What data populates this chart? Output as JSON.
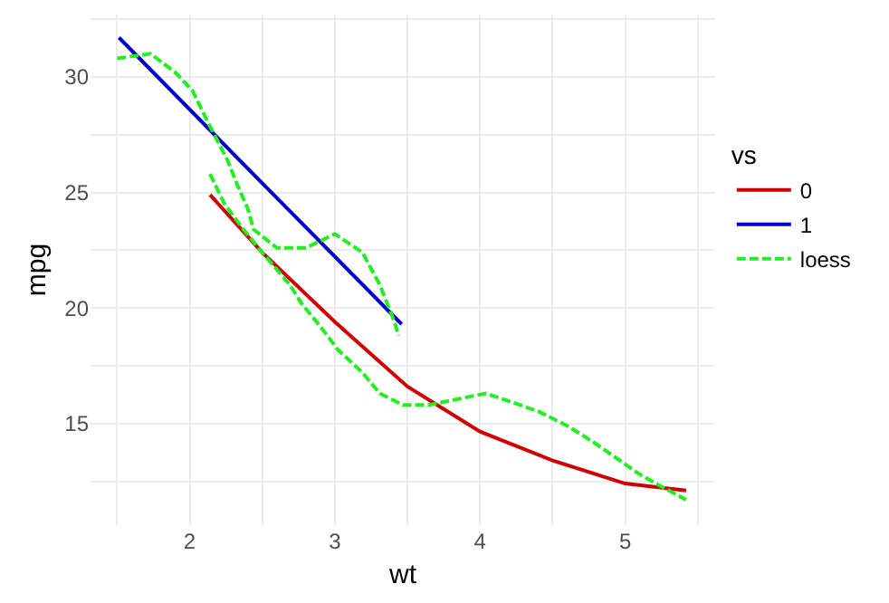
{
  "chart_data": {
    "type": "line",
    "xlabel": "wt",
    "ylabel": "mpg",
    "legend_title": "vs",
    "legend": "right",
    "grid": true,
    "marker": "none",
    "xlim": [
      1.317,
      5.62
    ],
    "ylim": [
      10.6,
      32.7
    ],
    "xticks": [
      {
        "value": 1.5,
        "label": null
      },
      2,
      {
        "value": 2.5,
        "label": null
      },
      3,
      {
        "value": 3.5,
        "label": null
      },
      4,
      {
        "value": 4.5,
        "label": null
      },
      5,
      {
        "value": 5.5,
        "label": null
      }
    ],
    "yticks": [
      {
        "value": 12.5,
        "label": null
      },
      15,
      {
        "value": 17.5,
        "label": null
      },
      20,
      {
        "value": 22.5,
        "label": null
      },
      25,
      {
        "value": 27.5,
        "label": null
      },
      30,
      {
        "value": 32.5,
        "label": null
      }
    ],
    "series": [
      {
        "name": "0",
        "color": "#d00000",
        "line_style": "solid",
        "x": [
          2.14,
          2.5,
          3.0,
          3.5,
          4.0,
          4.5,
          5.0,
          5.42
        ],
        "values": [
          24.9,
          22.4,
          19.4,
          16.6,
          14.65,
          13.4,
          12.4,
          12.1
        ]
      },
      {
        "name": "1",
        "color": "#0000cc",
        "line_style": "solid",
        "x": [
          1.513,
          2.5,
          3.46
        ],
        "values": [
          31.7,
          25.4,
          19.3
        ]
      },
      {
        "name": "loess",
        "color": "#22ee22",
        "line_style": "dashed",
        "x": [
          1.5,
          1.73,
          1.9,
          2.02,
          2.12,
          2.26,
          2.33,
          2.4,
          2.44,
          2.6,
          2.8,
          3.0,
          3.19,
          3.31,
          3.41,
          3.44
        ],
        "values": [
          30.8,
          31.0,
          30.2,
          29.4,
          28.1,
          26.4,
          25.3,
          24.3,
          23.4,
          22.6,
          22.6,
          23.2,
          22.4,
          21.0,
          19.4,
          18.8
        ]
      },
      {
        "color": "#22ee22",
        "line_style": "dashed",
        "x": [
          2.14,
          2.24,
          2.37,
          2.5,
          2.69,
          2.77,
          2.9,
          3.02,
          3.19,
          3.31,
          3.47,
          3.65,
          3.88,
          4.04,
          4.23,
          4.41,
          4.6,
          4.78,
          4.94,
          5.1,
          5.27,
          5.42
        ],
        "values": [
          25.8,
          24.5,
          23.4,
          22.4,
          21.0,
          20.2,
          19.2,
          18.2,
          17.2,
          16.3,
          15.8,
          15.8,
          16.1,
          16.3,
          15.9,
          15.5,
          14.9,
          14.2,
          13.5,
          12.8,
          12.2,
          11.7
        ]
      }
    ]
  }
}
